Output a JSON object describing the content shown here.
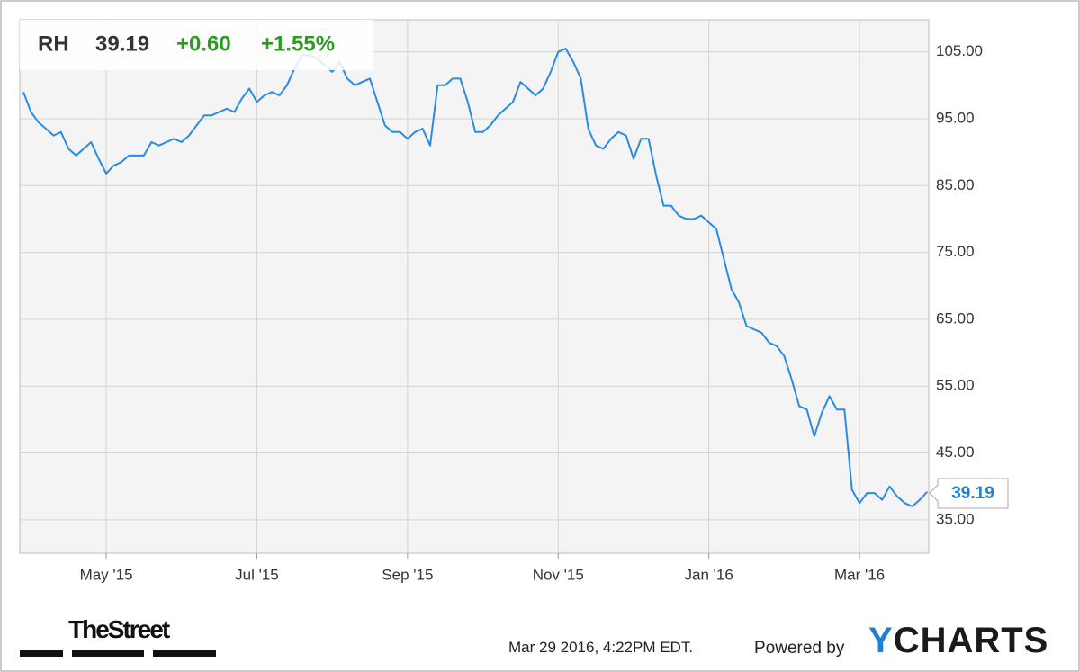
{
  "quote": {
    "ticker": "RH",
    "price": "39.19",
    "change": "+0.60",
    "change_percent": "+1.55%"
  },
  "chart_data": {
    "type": "line",
    "categories": [
      null,
      null,
      null,
      null,
      null,
      null,
      null,
      null,
      null,
      null,
      null,
      "May '15",
      null,
      null,
      null,
      null,
      null,
      null,
      null,
      null,
      null,
      null,
      null,
      null,
      null,
      null,
      null,
      null,
      null,
      null,
      null,
      "Jul '15",
      null,
      null,
      null,
      null,
      null,
      null,
      null,
      null,
      null,
      null,
      null,
      null,
      null,
      null,
      null,
      null,
      null,
      null,
      null,
      "Sep '15",
      null,
      null,
      null,
      null,
      null,
      null,
      null,
      null,
      null,
      null,
      null,
      null,
      null,
      null,
      null,
      null,
      null,
      null,
      null,
      "Nov '15",
      null,
      null,
      null,
      null,
      null,
      null,
      null,
      null,
      null,
      null,
      null,
      null,
      null,
      null,
      null,
      null,
      null,
      null,
      null,
      "Jan '16",
      null,
      null,
      null,
      null,
      null,
      null,
      null,
      null,
      null,
      null,
      null,
      null,
      null,
      null,
      null,
      null,
      null,
      null,
      null,
      "Mar '16",
      null,
      null,
      null,
      null,
      null,
      null,
      null,
      null,
      null
    ],
    "series": [
      {
        "name": "RH",
        "color": "#2a8be0",
        "values": [
          99,
          96,
          94.5,
          93.5,
          92.5,
          93,
          90.5,
          89.5,
          90.5,
          91.5,
          89,
          86.8,
          88,
          88.5,
          89.5,
          89.5,
          89.5,
          91.5,
          91,
          91.5,
          92,
          91.5,
          92.5,
          94,
          95.5,
          95.5,
          96,
          96.5,
          96,
          98,
          99.5,
          97.5,
          98.5,
          99,
          98.5,
          100,
          102.5,
          104.5,
          104.5,
          104,
          103,
          102,
          103.5,
          101,
          100,
          100.5,
          101,
          97.5,
          94,
          93,
          93,
          92,
          93,
          93.5,
          91,
          100,
          100,
          101,
          101,
          97.5,
          93,
          93,
          94,
          95.5,
          96.5,
          97.5,
          100.5,
          99.5,
          98.5,
          99.5,
          102,
          105,
          105.5,
          103.5,
          101,
          93.5,
          91,
          90.5,
          92,
          93,
          92.5,
          89,
          92,
          92,
          86.5,
          82,
          82,
          80.5,
          80,
          80,
          80.5,
          79.5,
          78.5,
          74,
          69.5,
          67.5,
          64,
          63.5,
          63,
          61.5,
          61,
          59.5,
          56,
          52,
          51.5,
          47.5,
          51,
          53.5,
          51.5,
          51.5,
          39.5,
          37.5,
          39,
          39,
          38,
          40,
          38.5,
          37.5,
          37,
          38,
          39.19
        ]
      }
    ],
    "ylim": [
      30,
      109.8
    ],
    "yticks": [
      {
        "value": 35,
        "label": "35.00"
      },
      {
        "value": 45,
        "label": "45.00"
      },
      {
        "value": 55,
        "label": "55.00"
      },
      {
        "value": 65,
        "label": "65.00"
      },
      {
        "value": 75,
        "label": "75.00"
      },
      {
        "value": 85,
        "label": "85.00"
      },
      {
        "value": 95,
        "label": "95.00"
      },
      {
        "value": 105,
        "label": "105.00"
      }
    ],
    "grid": true
  },
  "footer": {
    "source_logo": "TheStreet",
    "timestamp": "Mar 29 2016, 4:22PM EDT.",
    "powered_by": "Powered by",
    "brand": "YCHARTS"
  }
}
